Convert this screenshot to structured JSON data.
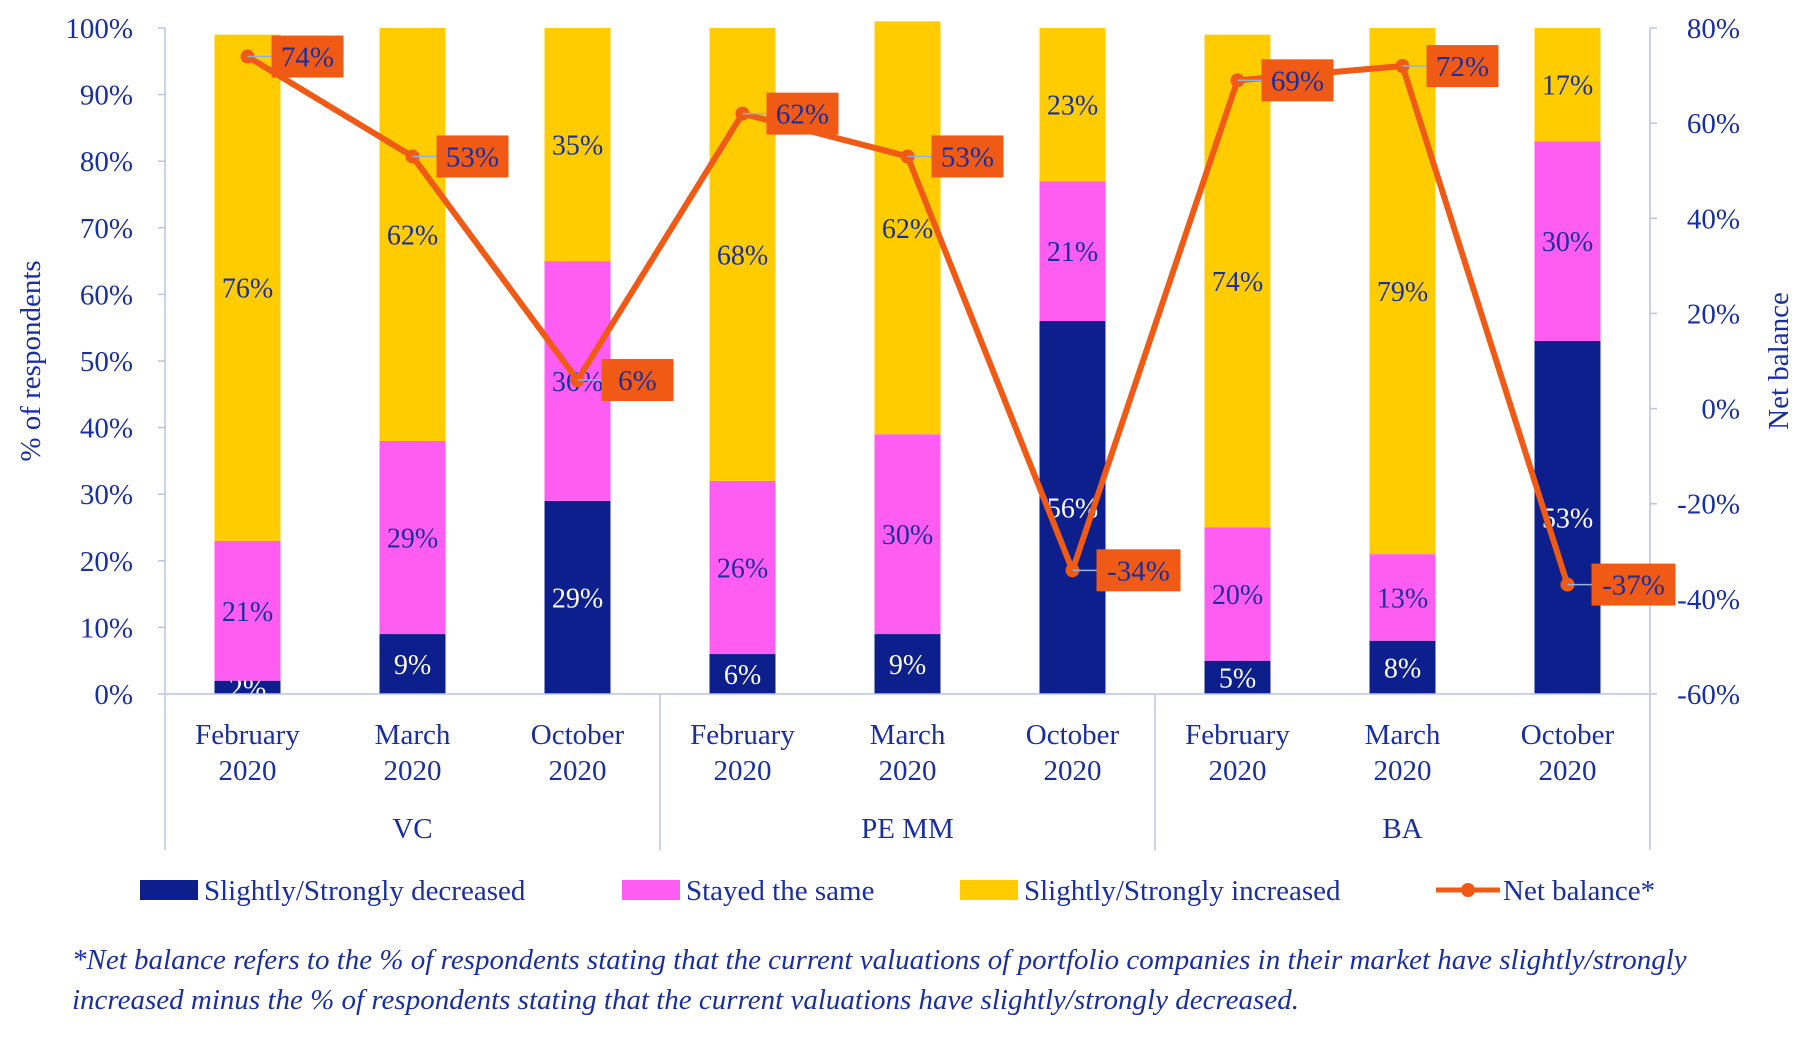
{
  "chart_data": {
    "type": "bar",
    "stacked": true,
    "groups": [
      "VC",
      "PE MM",
      "BA"
    ],
    "periods": [
      "February 2020",
      "March 2020",
      "October 2020"
    ],
    "series": [
      {
        "name": "Slightly/Strongly decreased",
        "color": "#0d1f8c",
        "values": [
          2,
          9,
          29,
          6,
          9,
          56,
          5,
          8,
          53
        ],
        "labels": [
          "2%",
          "9%",
          "29%",
          "6%",
          "9%",
          "56%",
          "5%",
          "8%",
          "53%"
        ]
      },
      {
        "name": "Stayed the same",
        "color": "#ff5cf1",
        "values": [
          21,
          29,
          36,
          26,
          30,
          21,
          20,
          13,
          30
        ],
        "labels": [
          "21%",
          "29%",
          "36%",
          "26%",
          "30%",
          "21%",
          "20%",
          "13%",
          "30%"
        ]
      },
      {
        "name": "Slightly/Strongly increased",
        "color": "#ffcc00",
        "values": [
          76,
          62,
          35,
          68,
          62,
          23,
          74,
          79,
          17
        ],
        "labels": [
          "76%",
          "62%",
          "35%",
          "68%",
          "62%",
          "23%",
          "74%",
          "79%",
          "17%"
        ]
      }
    ],
    "line_series": {
      "name": "Net balance*",
      "color": "#f05a14",
      "axis": "right",
      "values": [
        74,
        53,
        6,
        62,
        53,
        -34,
        69,
        72,
        -37
      ],
      "labels": [
        "74%",
        "53%",
        "6%",
        "62%",
        "53%",
        "-34%",
        "69%",
        "72%",
        "-37%"
      ]
    },
    "y_left": {
      "label": "% of respondents",
      "range": [
        0,
        100
      ],
      "ticks": [
        "0%",
        "10%",
        "20%",
        "30%",
        "40%",
        "50%",
        "60%",
        "70%",
        "80%",
        "90%",
        "100%"
      ]
    },
    "y_right": {
      "label": "Net balance",
      "range": [
        -60,
        80
      ],
      "ticks": [
        "-60%",
        "-40%",
        "-20%",
        "0%",
        "20%",
        "40%",
        "60%",
        "80%"
      ]
    },
    "legend_position": "bottom",
    "grid": false
  },
  "footnote": "*Net balance refers to the % of respondents stating that the current valuations of portfolio companies in their market have slightly/strongly increased minus the % of respondents stating that the current valuations have slightly/strongly decreased."
}
